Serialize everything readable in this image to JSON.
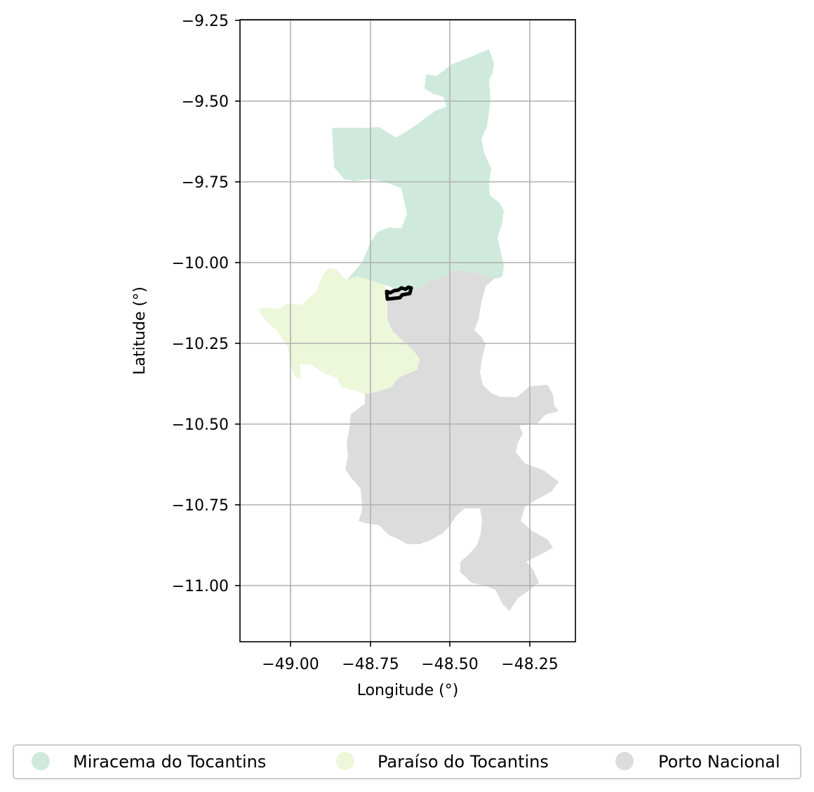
{
  "map": {
    "xlabel": "Longitude (°)",
    "ylabel": "Latitude (°)",
    "x_ticks": [
      "−49.00",
      "−48.75",
      "−48.50",
      "−48.25"
    ],
    "y_ticks": [
      "−9.25",
      "−9.50",
      "−9.75",
      "−10.00",
      "−10.25",
      "−10.50",
      "−10.75",
      "−11.00"
    ],
    "xlim": [
      -49.16,
      -48.14
    ],
    "ylim": [
      -11.17,
      -9.25
    ],
    "grid": true
  },
  "legend": {
    "placement": "bottom",
    "items": [
      {
        "label": "Miracema do Tocantins",
        "color": "#cfeadc"
      },
      {
        "label": "Paraíso do Tocantins",
        "color": "#edf7da"
      },
      {
        "label": "Porto Nacional",
        "color": "#dcdcdc"
      }
    ]
  },
  "regions": {
    "miracema": {
      "name": "Miracema do Tocantins",
      "color": "#cfeadc"
    },
    "paraiso": {
      "name": "Paraíso do Tocantins",
      "color": "#edf7da"
    },
    "porto": {
      "name": "Porto Nacional",
      "color": "#dcdcdc"
    },
    "highlight": {
      "stroke": "#000000"
    }
  }
}
